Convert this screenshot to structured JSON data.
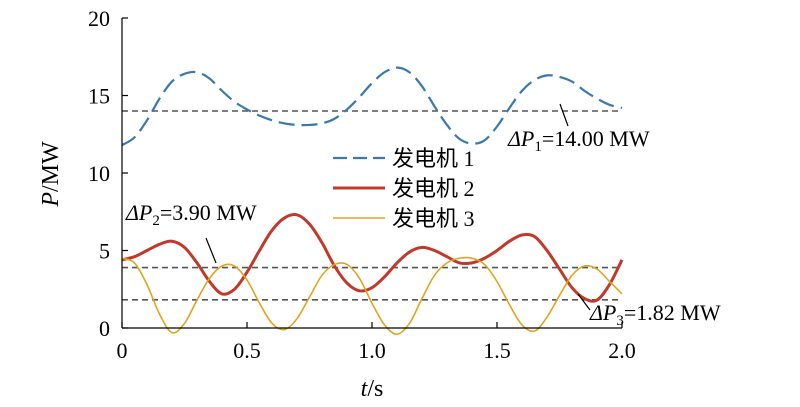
{
  "chart_data": {
    "type": "line",
    "xlabel_var": "t",
    "xlabel_unit": "/s",
    "ylabel_var": "P",
    "ylabel_unit": "/MW",
    "xlim": [
      0,
      2.0
    ],
    "ylim": [
      0,
      20
    ],
    "x_ticks": [
      0,
      0.5,
      1.0,
      1.5,
      2.0
    ],
    "x_tick_labels": [
      "0",
      "0.5",
      "1.0",
      "1.5",
      "2.0"
    ],
    "y_ticks": [
      0,
      5,
      10,
      15,
      20
    ],
    "y_tick_labels": [
      "0",
      "5",
      "10",
      "15",
      "20"
    ],
    "legend_position": "center",
    "series": [
      {
        "name": "发电机 1",
        "color": "#3a78b0",
        "style": "dashed",
        "x": [
          0,
          0.05,
          0.1,
          0.15,
          0.2,
          0.25,
          0.3,
          0.35,
          0.4,
          0.45,
          0.5,
          0.55,
          0.6,
          0.65,
          0.7,
          0.75,
          0.8,
          0.85,
          0.9,
          0.95,
          1.0,
          1.05,
          1.1,
          1.15,
          1.2,
          1.25,
          1.3,
          1.35,
          1.4,
          1.45,
          1.5,
          1.55,
          1.6,
          1.65,
          1.7,
          1.75,
          1.8,
          1.85,
          1.9,
          1.95,
          2.0
        ],
        "values": [
          11.8,
          12.3,
          13.4,
          14.8,
          15.9,
          16.4,
          16.5,
          16.1,
          15.3,
          14.6,
          14.1,
          13.7,
          13.4,
          13.2,
          13.1,
          13.1,
          13.2,
          13.5,
          14.1,
          14.9,
          15.8,
          16.5,
          16.8,
          16.5,
          15.6,
          14.3,
          13.1,
          12.2,
          11.9,
          12.1,
          13.0,
          14.2,
          15.3,
          16.0,
          16.3,
          16.2,
          15.9,
          15.3,
          14.8,
          14.4,
          14.2
        ]
      },
      {
        "name": "发电机 2",
        "color": "#c0392b",
        "style": "solid",
        "x": [
          0,
          0.05,
          0.1,
          0.15,
          0.2,
          0.25,
          0.3,
          0.35,
          0.4,
          0.45,
          0.5,
          0.55,
          0.6,
          0.65,
          0.7,
          0.75,
          0.8,
          0.85,
          0.9,
          0.95,
          1.0,
          1.05,
          1.1,
          1.15,
          1.2,
          1.25,
          1.3,
          1.35,
          1.4,
          1.45,
          1.5,
          1.55,
          1.6,
          1.65,
          1.7,
          1.75,
          1.8,
          1.85,
          1.9,
          1.95,
          2.0
        ],
        "values": [
          4.4,
          4.6,
          5.0,
          5.4,
          5.6,
          5.2,
          4.2,
          3.0,
          2.2,
          2.5,
          3.6,
          5.0,
          6.3,
          7.1,
          7.3,
          6.7,
          5.5,
          4.0,
          2.9,
          2.4,
          2.6,
          3.3,
          4.2,
          4.9,
          5.2,
          5.0,
          4.6,
          4.2,
          4.2,
          4.5,
          5.0,
          5.6,
          6.0,
          5.9,
          5.0,
          3.8,
          2.6,
          1.9,
          1.8,
          2.8,
          4.4
        ]
      },
      {
        "name": "发电机 3",
        "color": "#e0a422",
        "style": "solid",
        "x": [
          0,
          0.05,
          0.1,
          0.15,
          0.2,
          0.25,
          0.3,
          0.35,
          0.4,
          0.45,
          0.5,
          0.55,
          0.6,
          0.65,
          0.7,
          0.75,
          0.8,
          0.85,
          0.9,
          0.95,
          1.0,
          1.05,
          1.1,
          1.15,
          1.2,
          1.25,
          1.3,
          1.35,
          1.4,
          1.45,
          1.5,
          1.55,
          1.6,
          1.65,
          1.7,
          1.75,
          1.8,
          1.85,
          1.9,
          1.95,
          2.0
        ],
        "values": [
          4.5,
          4.2,
          2.8,
          0.9,
          -0.3,
          0.3,
          1.8,
          3.2,
          4.0,
          4.0,
          3.1,
          1.6,
          0.3,
          -0.1,
          0.6,
          2.0,
          3.4,
          4.1,
          4.1,
          3.2,
          1.6,
          0.2,
          -0.4,
          0.3,
          1.9,
          3.4,
          4.2,
          4.5,
          4.5,
          4.1,
          3.0,
          1.5,
          0.2,
          -0.2,
          0.7,
          2.1,
          3.4,
          4.0,
          3.8,
          3.0,
          2.2
        ]
      }
    ],
    "reference_lines": [
      {
        "name": "ΔP1",
        "value": 14.0,
        "color": "#555555",
        "style": "dashed"
      },
      {
        "name": "ΔP2",
        "value": 3.9,
        "color": "#555555",
        "style": "dashed"
      },
      {
        "name": "ΔP3",
        "value": 1.82,
        "color": "#555555",
        "style": "dashed"
      }
    ],
    "annotations": [
      {
        "prefix": "ΔP",
        "sub": "1",
        "text": "=14.00 MW"
      },
      {
        "prefix": "ΔP",
        "sub": "2",
        "text": "=3.90 MW"
      },
      {
        "prefix": "ΔP",
        "sub": "3",
        "text": "=1.82 MW"
      }
    ]
  }
}
